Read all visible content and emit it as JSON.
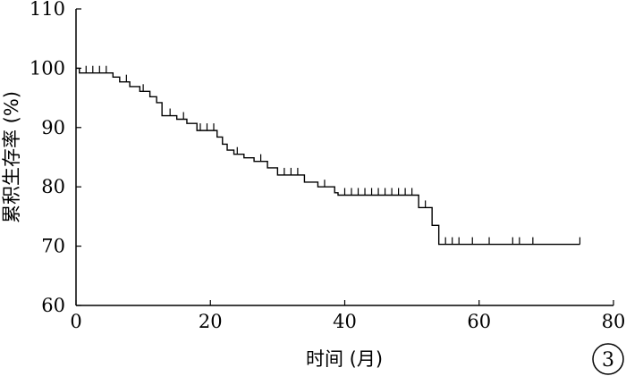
{
  "chart_data": {
    "type": "line",
    "subtype": "kaplan-meier",
    "xlabel": "时间 (月)",
    "ylabel": "累积生存率 (%)",
    "xlim": [
      0,
      80
    ],
    "ylim": [
      60,
      110
    ],
    "x_ticks": [
      "0",
      "20",
      "40",
      "60",
      "80"
    ],
    "y_ticks": [
      "60",
      "70",
      "80",
      "90",
      "100",
      "110"
    ],
    "grid": false,
    "series": [
      {
        "steps": [
          [
            0,
            100
          ],
          [
            0.5,
            99.2
          ],
          [
            5.5,
            98.5
          ],
          [
            6.5,
            97.7
          ],
          [
            8,
            96.9
          ],
          [
            9.5,
            96.1
          ],
          [
            11,
            95.2
          ],
          [
            12,
            94.2
          ],
          [
            12.8,
            92.0
          ],
          [
            15,
            91.4
          ],
          [
            16.5,
            90.7
          ],
          [
            18,
            89.5
          ],
          [
            21,
            88.4
          ],
          [
            21.8,
            87.2
          ],
          [
            22.5,
            86.2
          ],
          [
            23.5,
            85.5
          ],
          [
            25,
            84.9
          ],
          [
            26.5,
            84.3
          ],
          [
            28.5,
            83.2
          ],
          [
            30,
            82.0
          ],
          [
            34,
            80.8
          ],
          [
            36,
            80.0
          ],
          [
            38.5,
            79.0
          ],
          [
            39,
            78.6
          ],
          [
            51,
            76.5
          ],
          [
            53,
            73.5
          ],
          [
            54,
            70.3
          ],
          [
            75,
            70.3
          ]
        ],
        "censored": [
          1.5,
          2.5,
          3.5,
          4.5,
          7.5,
          10,
          14,
          16,
          18.5,
          19.5,
          20.5,
          24,
          27.5,
          31,
          32,
          33,
          37,
          40,
          41,
          42,
          43,
          44,
          45,
          46,
          47,
          48,
          49,
          50,
          52,
          55,
          56,
          57,
          59,
          61.5,
          65,
          66,
          68,
          75
        ]
      }
    ]
  },
  "panel_label": "3"
}
